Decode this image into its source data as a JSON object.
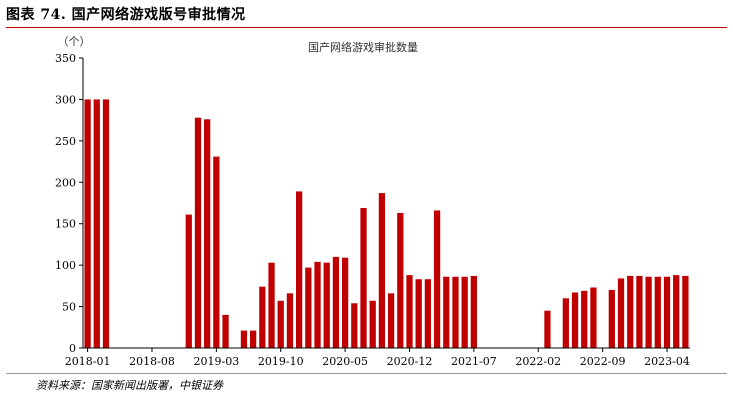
{
  "figure": {
    "title": "图表 74. 国产网络游戏版号审批情况",
    "source": "资料来源：国家新闻出版署，中银证券"
  },
  "colors": {
    "bar": "#c00000",
    "rule": "#c00000"
  },
  "chart_data": {
    "type": "bar",
    "title": "国产网络游戏审批数量",
    "ylabel": "（个）",
    "ylim": [
      0,
      350
    ],
    "yticks": [
      0,
      50,
      100,
      150,
      200,
      250,
      300,
      350
    ],
    "grid": false,
    "xtick_labels": [
      "2018-01",
      "2018-08",
      "2019-03",
      "2019-10",
      "2020-05",
      "2020-12",
      "2021-07",
      "2022-02",
      "2022-09",
      "2023-04"
    ],
    "categories": [
      "2018-01",
      "2018-02",
      "2018-03",
      "2018-04",
      "2018-05",
      "2018-06",
      "2018-07",
      "2018-08",
      "2018-09",
      "2018-10",
      "2018-11",
      "2018-12",
      "2019-01",
      "2019-02",
      "2019-03",
      "2019-04",
      "2019-05",
      "2019-06",
      "2019-07",
      "2019-08",
      "2019-09",
      "2019-10",
      "2019-11",
      "2019-12",
      "2020-01",
      "2020-02",
      "2020-03",
      "2020-04",
      "2020-05",
      "2020-06",
      "2020-07",
      "2020-08",
      "2020-09",
      "2020-10",
      "2020-11",
      "2020-12",
      "2021-01",
      "2021-02",
      "2021-03",
      "2021-04",
      "2021-05",
      "2021-06",
      "2021-07",
      "2021-08",
      "2021-09",
      "2021-10",
      "2021-11",
      "2021-12",
      "2022-01",
      "2022-02",
      "2022-03",
      "2022-04",
      "2022-05",
      "2022-06",
      "2022-07",
      "2022-08",
      "2022-09",
      "2022-10",
      "2022-11",
      "2022-12",
      "2023-01",
      "2023-02",
      "2023-03",
      "2023-04",
      "2023-05",
      "2023-06"
    ],
    "values": [
      300,
      300,
      300,
      0,
      0,
      0,
      0,
      0,
      0,
      0,
      0,
      161,
      278,
      276,
      231,
      40,
      0,
      21,
      21,
      74,
      103,
      57,
      66,
      189,
      97,
      104,
      103,
      110,
      109,
      54,
      169,
      57,
      187,
      66,
      163,
      88,
      83,
      83,
      166,
      86,
      86,
      86,
      87,
      0,
      0,
      0,
      0,
      0,
      0,
      0,
      45,
      0,
      60,
      67,
      69,
      73,
      0,
      70,
      84,
      87,
      87,
      86,
      86,
      86,
      88,
      87
    ]
  }
}
